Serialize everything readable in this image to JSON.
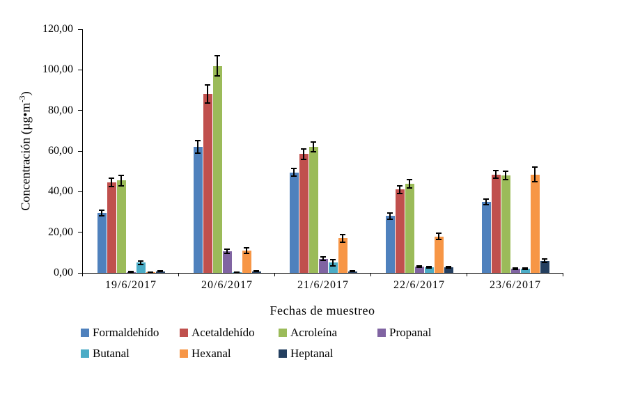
{
  "chart_data": {
    "type": "bar",
    "title": "",
    "xlabel": "Fechas de muestreo",
    "ylabel": "Concentración (µg•m-3)",
    "ylabel_parts": {
      "prefix": "Concentración (µg•m",
      "sup": "-3",
      "suffix": ")"
    },
    "categories": [
      "19/6/2017",
      "20/6/2017",
      "21/6/2017",
      "22/6/2017",
      "23/6/2017"
    ],
    "series": [
      {
        "name": "Formaldehído",
        "color": "#4F81BD",
        "values": [
          29.5,
          62,
          49.5,
          28,
          35
        ],
        "errors": [
          1.5,
          3,
          2,
          1.5,
          1.5
        ]
      },
      {
        "name": "Acetaldehído",
        "color": "#C0504D",
        "values": [
          44.5,
          88,
          58.5,
          41,
          48.5
        ],
        "errors": [
          2,
          4.5,
          2.5,
          2,
          2
        ]
      },
      {
        "name": "Acroleína",
        "color": "#9BBB59",
        "values": [
          45.5,
          102,
          62,
          44,
          48
        ],
        "errors": [
          2.5,
          5,
          2.5,
          2,
          2
        ]
      },
      {
        "name": "Propanal",
        "color": "#8064A2",
        "values": [
          0.5,
          10.5,
          7,
          3,
          2
        ],
        "errors": [
          0.2,
          1,
          0.8,
          0.4,
          0.3
        ]
      },
      {
        "name": "Butanal",
        "color": "#4BACC6",
        "values": [
          5,
          0.3,
          5,
          2.7,
          2
        ],
        "errors": [
          1,
          0.1,
          1.5,
          0.4,
          0.3
        ]
      },
      {
        "name": "Hexanal",
        "color": "#F79646",
        "values": [
          0.3,
          11,
          17,
          18,
          48.5
        ],
        "errors": [
          0.1,
          1.5,
          2,
          1.5,
          3.5
        ]
      },
      {
        "name": "Heptanal",
        "color": "#243F60",
        "values": [
          0.8,
          0.8,
          0.8,
          2.7,
          6
        ],
        "errors": [
          0.2,
          0.2,
          0.2,
          0.4,
          0.7
        ]
      }
    ],
    "ylim": [
      0,
      120
    ],
    "ytick_step": 20,
    "ytick_labels": [
      "0,00",
      "20,00",
      "40,00",
      "60,00",
      "80,00",
      "100,00",
      "120,00"
    ],
    "grid": false,
    "legend_position": "bottom",
    "error_bars": true
  }
}
